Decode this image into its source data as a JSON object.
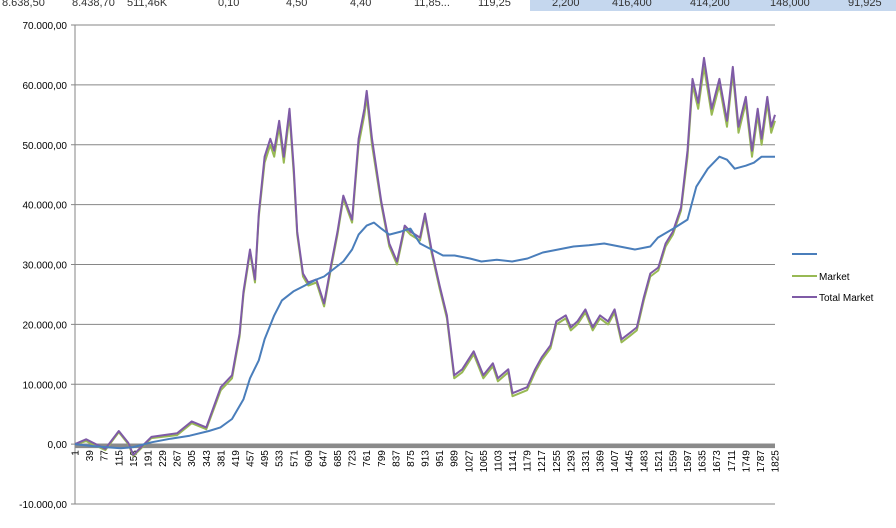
{
  "sheet_strip": {
    "cells": [
      "8.638,50",
      "8.438,70",
      "511,46K",
      "0,10",
      "4,50",
      "4,40",
      "11,85...",
      "119,25",
      "2,200",
      "416,400",
      "414,200",
      "148,000",
      "91,925"
    ]
  },
  "colors": {
    "series_1": "#4a7ebb",
    "market": "#98b954",
    "total_market": "#7f5ba6",
    "gridline": "#868686",
    "axis": "#868686",
    "highlight": "#c5d7ee"
  },
  "chart_data": {
    "type": "line",
    "ylim": [
      -10000,
      70000
    ],
    "y_ticks": [
      "-10.000,00",
      "0,00",
      "10.000,00",
      "20.000,00",
      "30.000,00",
      "40.000,00",
      "50.000,00",
      "60.000,00",
      "70.000,00"
    ],
    "y_tick_values": [
      -10000,
      0,
      10000,
      20000,
      30000,
      40000,
      50000,
      60000,
      70000
    ],
    "x_range": [
      1,
      1825
    ],
    "x_ticks": [
      "1",
      "39",
      "77",
      "115",
      "153",
      "191",
      "229",
      "267",
      "305",
      "343",
      "381",
      "419",
      "457",
      "495",
      "533",
      "571",
      "609",
      "647",
      "685",
      "723",
      "761",
      "799",
      "837",
      "875",
      "913",
      "951",
      "989",
      "1027",
      "1065",
      "1103",
      "1141",
      "1179",
      "1217",
      "1255",
      "1293",
      "1331",
      "1369",
      "1407",
      "1445",
      "1483",
      "1521",
      "1559",
      "1597",
      "1635",
      "1673",
      "1711",
      "1749",
      "1787",
      "1825"
    ],
    "grid": true,
    "legend_position": "right",
    "series": [
      {
        "name": "",
        "color": "#4a7ebb",
        "x": [
          1,
          40,
          80,
          120,
          153,
          200,
          250,
          300,
          350,
          380,
          410,
          440,
          457,
          480,
          495,
          520,
          540,
          570,
          600,
          630,
          650,
          680,
          700,
          723,
          740,
          761,
          780,
          799,
          820,
          850,
          875,
          900,
          930,
          960,
          990,
          1030,
          1060,
          1100,
          1140,
          1180,
          1220,
          1260,
          1300,
          1340,
          1380,
          1420,
          1460,
          1500,
          1520,
          1560,
          1597,
          1620,
          1650,
          1680,
          1700,
          1720,
          1749,
          1770,
          1790,
          1810,
          1825
        ],
        "y": [
          0,
          -300,
          -500,
          -700,
          -500,
          300,
          900,
          1400,
          2200,
          2800,
          4200,
          7500,
          11000,
          14000,
          17500,
          21500,
          24000,
          25500,
          26500,
          27500,
          28000,
          29500,
          30500,
          32500,
          35000,
          36500,
          37000,
          36000,
          35000,
          35500,
          36000,
          33500,
          32500,
          31500,
          31500,
          31000,
          30500,
          30800,
          30500,
          31000,
          32000,
          32500,
          33000,
          33200,
          33500,
          33000,
          32500,
          33000,
          34500,
          36000,
          37500,
          43000,
          46000,
          48000,
          47500,
          46000,
          46500,
          47000,
          48000,
          48000,
          48000
        ]
      },
      {
        "name": "Market",
        "color": "#98b954",
        "x": [
          1,
          30,
          80,
          115,
          140,
          153,
          200,
          267,
          305,
          343,
          381,
          410,
          430,
          440,
          457,
          470,
          480,
          495,
          510,
          520,
          533,
          545,
          560,
          571,
          580,
          595,
          609,
          630,
          650,
          670,
          685,
          700,
          723,
          740,
          755,
          761,
          775,
          799,
          820,
          840,
          860,
          875,
          900,
          913,
          930,
          951,
          970,
          989,
          1010,
          1040,
          1065,
          1090,
          1103,
          1130,
          1141,
          1160,
          1179,
          1200,
          1217,
          1240,
          1255,
          1280,
          1293,
          1310,
          1331,
          1350,
          1369,
          1390,
          1407,
          1425,
          1445,
          1465,
          1483,
          1500,
          1521,
          1540,
          1559,
          1580,
          1597,
          1610,
          1625,
          1640,
          1660,
          1680,
          1700,
          1715,
          1730,
          1749,
          1765,
          1780,
          1790,
          1805,
          1815,
          1825
        ],
        "y": [
          0,
          500,
          -1000,
          2000,
          0,
          -2000,
          1000,
          1500,
          3500,
          2500,
          9000,
          11000,
          18000,
          25000,
          32000,
          27000,
          38000,
          47000,
          50000,
          48000,
          53000,
          47000,
          55000,
          45000,
          35000,
          28000,
          26500,
          27000,
          23000,
          30000,
          35000,
          41000,
          37000,
          50000,
          55000,
          58000,
          50000,
          40000,
          33000,
          30000,
          36000,
          35000,
          34000,
          38000,
          32000,
          26000,
          21000,
          11000,
          12000,
          15000,
          11000,
          13000,
          10500,
          12000,
          8000,
          8500,
          9000,
          12000,
          14000,
          16000,
          20000,
          21000,
          19000,
          20000,
          22000,
          19000,
          21000,
          20000,
          22000,
          17000,
          18000,
          19000,
          24000,
          28000,
          29000,
          33000,
          35000,
          39000,
          48000,
          60000,
          56000,
          63000,
          55000,
          60000,
          53000,
          62000,
          52000,
          57000,
          48000,
          55000,
          50000,
          57000,
          52000,
          54000
        ]
      },
      {
        "name": "Total Market",
        "color": "#7f5ba6",
        "x": [
          1,
          30,
          80,
          115,
          140,
          153,
          200,
          267,
          305,
          343,
          381,
          410,
          430,
          440,
          457,
          470,
          480,
          495,
          510,
          520,
          533,
          545,
          560,
          571,
          580,
          595,
          609,
          630,
          650,
          670,
          685,
          700,
          723,
          740,
          755,
          761,
          775,
          799,
          820,
          840,
          860,
          875,
          900,
          913,
          930,
          951,
          970,
          989,
          1010,
          1040,
          1065,
          1090,
          1103,
          1130,
          1141,
          1160,
          1179,
          1200,
          1217,
          1240,
          1255,
          1280,
          1293,
          1310,
          1331,
          1350,
          1369,
          1390,
          1407,
          1425,
          1445,
          1465,
          1483,
          1500,
          1521,
          1540,
          1559,
          1580,
          1597,
          1610,
          1625,
          1640,
          1660,
          1680,
          1700,
          1715,
          1730,
          1749,
          1765,
          1780,
          1790,
          1805,
          1815,
          1825
        ],
        "y": [
          0,
          800,
          -800,
          2200,
          200,
          -1800,
          1200,
          1800,
          3800,
          2800,
          9500,
          11500,
          18500,
          25500,
          32500,
          27500,
          38500,
          48000,
          51000,
          49000,
          54000,
          48000,
          56000,
          46000,
          35500,
          28500,
          27000,
          27500,
          23500,
          30500,
          35500,
          41500,
          37500,
          51000,
          56000,
          59000,
          51000,
          40500,
          33500,
          30500,
          36500,
          35500,
          34500,
          38500,
          32500,
          26500,
          21500,
          11500,
          12500,
          15500,
          11500,
          13500,
          11000,
          12500,
          8500,
          9000,
          9500,
          12500,
          14500,
          16500,
          20500,
          21500,
          19500,
          20500,
          22500,
          19500,
          21500,
          20500,
          22500,
          17500,
          18500,
          19500,
          24500,
          28500,
          29500,
          33500,
          35500,
          39500,
          49000,
          61000,
          57000,
          64500,
          56000,
          61000,
          54000,
          63000,
          53000,
          58000,
          49000,
          56000,
          51000,
          58000,
          53000,
          55000
        ]
      }
    ]
  }
}
